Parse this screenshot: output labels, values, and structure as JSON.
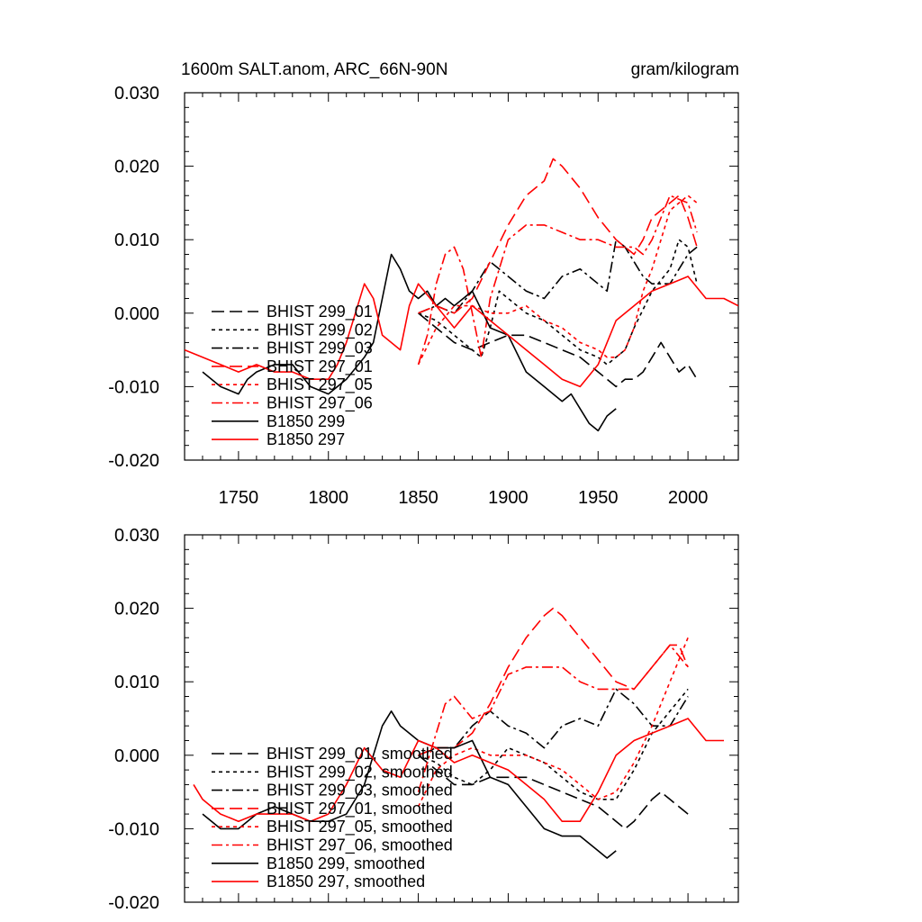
{
  "figure": {
    "title": "1600m SALT.anom, ARC_66N-90N",
    "units": "gram/kilogram"
  },
  "chart_data": [
    {
      "type": "line",
      "panel": "top",
      "xlim": [
        1720,
        2028
      ],
      "ylim": [
        -0.02,
        0.03
      ],
      "x_ticks": [
        1750,
        1800,
        1850,
        1900,
        1950,
        2000
      ],
      "y_ticks": [
        -0.02,
        -0.01,
        0.0,
        0.01,
        0.02,
        0.03
      ],
      "y_tick_labels": [
        "-0.020",
        "-0.010",
        "0.000",
        "0.010",
        "0.020",
        "0.030"
      ],
      "x_tick_labels": [
        "1750",
        "1800",
        "1850",
        "1900",
        "1950",
        "2000"
      ],
      "legend_position": "bottom-left",
      "series": [
        {
          "name": "BHIST 299_01",
          "color": "#000000",
          "dash": "long",
          "x": [
            1850,
            1860,
            1870,
            1880,
            1890,
            1900,
            1910,
            1920,
            1930,
            1940,
            1950,
            1955,
            1960,
            1965,
            1970,
            1975,
            1980,
            1985,
            1990,
            1995,
            2000,
            2005
          ],
          "y": [
            0.0,
            -0.002,
            -0.004,
            -0.005,
            -0.004,
            -0.003,
            -0.003,
            -0.004,
            -0.005,
            -0.006,
            -0.008,
            -0.009,
            -0.01,
            -0.009,
            -0.009,
            -0.008,
            -0.006,
            -0.004,
            -0.006,
            -0.008,
            -0.007,
            -0.009
          ]
        },
        {
          "name": "BHIST 299_02",
          "color": "#000000",
          "dash": "short",
          "x": [
            1850,
            1860,
            1870,
            1880,
            1885,
            1890,
            1895,
            1900,
            1910,
            1920,
            1930,
            1940,
            1950,
            1955,
            1960,
            1965,
            1970,
            1980,
            1990,
            1995,
            2000,
            2005
          ],
          "y": [
            0.0,
            -0.001,
            -0.003,
            -0.005,
            -0.006,
            -0.002,
            0.003,
            0.002,
            0.0,
            -0.001,
            -0.003,
            -0.005,
            -0.006,
            -0.007,
            -0.006,
            -0.005,
            -0.002,
            0.003,
            0.006,
            0.01,
            0.009,
            0.004
          ]
        },
        {
          "name": "BHIST 299_03",
          "color": "#000000",
          "dash": "dashdot",
          "x": [
            1850,
            1860,
            1870,
            1880,
            1890,
            1895,
            1900,
            1910,
            1920,
            1930,
            1940,
            1950,
            1955,
            1960,
            1965,
            1970,
            1975,
            1980,
            1990,
            2000,
            2005
          ],
          "y": [
            0.0,
            0.001,
            0.0,
            0.003,
            0.007,
            0.006,
            0.005,
            0.003,
            0.002,
            0.005,
            0.006,
            0.004,
            0.003,
            0.01,
            0.009,
            0.007,
            0.005,
            0.004,
            0.004,
            0.008,
            0.009
          ]
        },
        {
          "name": "BHIST 297_01",
          "color": "#ff0000",
          "dash": "long",
          "x": [
            1850,
            1860,
            1870,
            1880,
            1890,
            1900,
            1910,
            1920,
            1925,
            1930,
            1940,
            1950,
            1960,
            1970,
            1975,
            1980,
            1990,
            1995,
            2000,
            2005
          ],
          "y": [
            0.0,
            0.001,
            0.0,
            0.002,
            0.007,
            0.012,
            0.016,
            0.018,
            0.021,
            0.02,
            0.017,
            0.013,
            0.01,
            0.008,
            0.01,
            0.013,
            0.015,
            0.016,
            0.013,
            0.009
          ]
        },
        {
          "name": "BHIST 297_05",
          "color": "#ff0000",
          "dash": "short",
          "x": [
            1850,
            1860,
            1870,
            1880,
            1890,
            1900,
            1910,
            1920,
            1930,
            1940,
            1950,
            1955,
            1960,
            1965,
            1970,
            1975,
            1980,
            1985,
            1990,
            2000,
            2005
          ],
          "y": [
            -0.007,
            -0.002,
            0.001,
            0.001,
            0.0,
            0.0,
            0.001,
            -0.001,
            -0.002,
            -0.004,
            -0.005,
            -0.006,
            -0.006,
            -0.005,
            -0.002,
            0.003,
            0.006,
            0.01,
            0.014,
            0.016,
            0.015
          ]
        },
        {
          "name": "BHIST 297_06",
          "color": "#ff0000",
          "dash": "dashdot",
          "x": [
            1850,
            1855,
            1860,
            1865,
            1870,
            1875,
            1880,
            1885,
            1890,
            1900,
            1910,
            1920,
            1930,
            1940,
            1950,
            1960,
            1970,
            1975,
            1980,
            1990,
            2000,
            2005
          ],
          "y": [
            -0.007,
            -0.003,
            0.004,
            0.008,
            0.009,
            0.006,
            0.0,
            -0.006,
            0.002,
            0.01,
            0.012,
            0.012,
            0.011,
            0.01,
            0.01,
            0.009,
            0.009,
            0.008,
            0.01,
            0.016,
            0.015,
            0.011
          ]
        },
        {
          "name": "B1850 299",
          "color": "#000000",
          "dash": "solid",
          "x": [
            1730,
            1740,
            1750,
            1755,
            1760,
            1770,
            1780,
            1790,
            1800,
            1810,
            1820,
            1825,
            1830,
            1835,
            1840,
            1845,
            1850,
            1855,
            1860,
            1865,
            1870,
            1875,
            1880,
            1890,
            1900,
            1910,
            1920,
            1930,
            1935,
            1940,
            1945,
            1950,
            1955,
            1960
          ],
          "y": [
            -0.008,
            -0.01,
            -0.011,
            -0.009,
            -0.008,
            -0.007,
            -0.007,
            -0.01,
            -0.011,
            -0.009,
            -0.006,
            -0.004,
            0.002,
            0.008,
            0.006,
            0.003,
            0.002,
            0.003,
            0.001,
            0.002,
            0.001,
            0.002,
            0.003,
            -0.002,
            -0.003,
            -0.008,
            -0.01,
            -0.012,
            -0.011,
            -0.013,
            -0.015,
            -0.016,
            -0.014,
            -0.013
          ]
        },
        {
          "name": "B1850 297",
          "color": "#ff0000",
          "dash": "solid",
          "x": [
            1720,
            1730,
            1740,
            1750,
            1760,
            1770,
            1780,
            1790,
            1800,
            1805,
            1810,
            1815,
            1820,
            1825,
            1830,
            1840,
            1845,
            1850,
            1860,
            1870,
            1880,
            1890,
            1900,
            1910,
            1920,
            1930,
            1940,
            1950,
            1960,
            1970,
            1980,
            1990,
            2000,
            2010,
            2020,
            2028
          ],
          "y": [
            -0.005,
            -0.006,
            -0.007,
            -0.008,
            -0.007,
            -0.008,
            -0.008,
            -0.009,
            -0.009,
            -0.007,
            -0.004,
            0.0,
            0.004,
            0.002,
            -0.003,
            -0.005,
            0.001,
            0.004,
            0.001,
            -0.002,
            0.001,
            -0.001,
            -0.003,
            -0.005,
            -0.007,
            -0.009,
            -0.01,
            -0.007,
            -0.001,
            0.001,
            0.003,
            0.004,
            0.005,
            0.002,
            0.002,
            0.001
          ]
        }
      ]
    },
    {
      "type": "line",
      "panel": "bottom",
      "xlim": [
        1720,
        2028
      ],
      "ylim": [
        -0.02,
        0.03
      ],
      "x_ticks": [
        1750,
        1800,
        1850,
        1900,
        1950,
        2000
      ],
      "y_ticks": [
        -0.02,
        -0.01,
        0.0,
        0.01,
        0.02,
        0.03
      ],
      "y_tick_labels": [
        "-0.020",
        "-0.010",
        "0.000",
        "0.010",
        "0.020",
        "0.030"
      ],
      "x_tick_labels": [],
      "legend_position": "bottom-left",
      "series": [
        {
          "name": "BHIST 299_01, smoothed",
          "color": "#000000",
          "dash": "long",
          "x": [
            1850,
            1860,
            1870,
            1880,
            1890,
            1900,
            1910,
            1920,
            1930,
            1940,
            1950,
            1960,
            1965,
            1970,
            1980,
            1985,
            1990,
            2000
          ],
          "y": [
            0.0,
            -0.002,
            -0.004,
            -0.004,
            -0.003,
            -0.003,
            -0.003,
            -0.004,
            -0.005,
            -0.006,
            -0.007,
            -0.009,
            -0.01,
            -0.009,
            -0.006,
            -0.005,
            -0.006,
            -0.008
          ]
        },
        {
          "name": "BHIST 299_02, smoothed",
          "color": "#000000",
          "dash": "short",
          "x": [
            1850,
            1860,
            1870,
            1880,
            1890,
            1900,
            1910,
            1920,
            1930,
            1940,
            1950,
            1960,
            1970,
            1980,
            1990,
            2000
          ],
          "y": [
            0.0,
            -0.001,
            -0.003,
            -0.004,
            -0.002,
            0.001,
            0.0,
            -0.001,
            -0.003,
            -0.005,
            -0.006,
            -0.006,
            -0.002,
            0.003,
            0.006,
            0.009
          ]
        },
        {
          "name": "BHIST 299_03, smoothed",
          "color": "#000000",
          "dash": "dashdot",
          "x": [
            1850,
            1860,
            1870,
            1880,
            1890,
            1900,
            1910,
            1920,
            1930,
            1940,
            1950,
            1960,
            1970,
            1980,
            1990,
            2000
          ],
          "y": [
            0.0,
            0.001,
            0.001,
            0.004,
            0.006,
            0.004,
            0.003,
            0.001,
            0.004,
            0.005,
            0.004,
            0.009,
            0.007,
            0.004,
            0.004,
            0.008
          ]
        },
        {
          "name": "BHIST 297_01, smoothed",
          "color": "#ff0000",
          "dash": "long",
          "x": [
            1850,
            1860,
            1870,
            1880,
            1890,
            1900,
            1910,
            1920,
            1925,
            1930,
            1940,
            1950,
            1960,
            1970,
            1980,
            1990,
            1995,
            2000
          ],
          "y": [
            0.0,
            0.001,
            0.001,
            0.003,
            0.007,
            0.012,
            0.016,
            0.019,
            0.02,
            0.019,
            0.016,
            0.013,
            0.01,
            0.009,
            0.012,
            0.015,
            0.015,
            0.012
          ]
        },
        {
          "name": "BHIST 297_05, smoothed",
          "color": "#ff0000",
          "dash": "short",
          "x": [
            1850,
            1860,
            1870,
            1880,
            1890,
            1900,
            1910,
            1920,
            1930,
            1940,
            1950,
            1960,
            1970,
            1980,
            1990,
            2000
          ],
          "y": [
            -0.007,
            -0.002,
            0.0,
            0.001,
            0.0,
            0.0,
            0.0,
            -0.001,
            -0.002,
            -0.004,
            -0.006,
            -0.005,
            -0.001,
            0.004,
            0.01,
            0.016
          ]
        },
        {
          "name": "BHIST 297_06, smoothed",
          "color": "#ff0000",
          "dash": "dashdot",
          "x": [
            1850,
            1860,
            1865,
            1870,
            1880,
            1890,
            1900,
            1910,
            1920,
            1930,
            1940,
            1950,
            1960,
            1970,
            1980,
            1990,
            2000
          ],
          "y": [
            -0.005,
            0.003,
            0.007,
            0.008,
            0.005,
            0.006,
            0.011,
            0.012,
            0.012,
            0.012,
            0.01,
            0.009,
            0.009,
            0.009,
            0.012,
            0.015,
            0.012
          ]
        },
        {
          "name": "B1850 299, smoothed",
          "color": "#000000",
          "dash": "solid",
          "x": [
            1730,
            1740,
            1750,
            1760,
            1770,
            1780,
            1790,
            1800,
            1810,
            1820,
            1830,
            1835,
            1840,
            1850,
            1860,
            1870,
            1880,
            1890,
            1900,
            1910,
            1920,
            1930,
            1940,
            1950,
            1955,
            1960
          ],
          "y": [
            -0.008,
            -0.01,
            -0.01,
            -0.008,
            -0.007,
            -0.008,
            -0.009,
            -0.009,
            -0.008,
            -0.004,
            0.004,
            0.006,
            0.004,
            0.002,
            0.001,
            0.001,
            0.002,
            -0.003,
            -0.004,
            -0.007,
            -0.01,
            -0.011,
            -0.011,
            -0.013,
            -0.014,
            -0.013
          ]
        },
        {
          "name": "B1850 297, smoothed",
          "color": "#ff0000",
          "dash": "solid",
          "x": [
            1725,
            1730,
            1740,
            1750,
            1760,
            1770,
            1780,
            1790,
            1800,
            1810,
            1820,
            1830,
            1840,
            1850,
            1860,
            1870,
            1880,
            1890,
            1900,
            1910,
            1920,
            1930,
            1940,
            1950,
            1960,
            1970,
            1980,
            1990,
            2000,
            2010,
            2020
          ],
          "y": [
            -0.004,
            -0.006,
            -0.008,
            -0.009,
            -0.008,
            -0.008,
            -0.008,
            -0.009,
            -0.008,
            -0.004,
            0.001,
            -0.002,
            -0.003,
            0.002,
            0.001,
            -0.001,
            0.0,
            -0.001,
            -0.002,
            -0.004,
            -0.006,
            -0.009,
            -0.009,
            -0.005,
            0.0,
            0.002,
            0.003,
            0.004,
            0.005,
            0.002,
            0.002
          ]
        }
      ]
    }
  ]
}
